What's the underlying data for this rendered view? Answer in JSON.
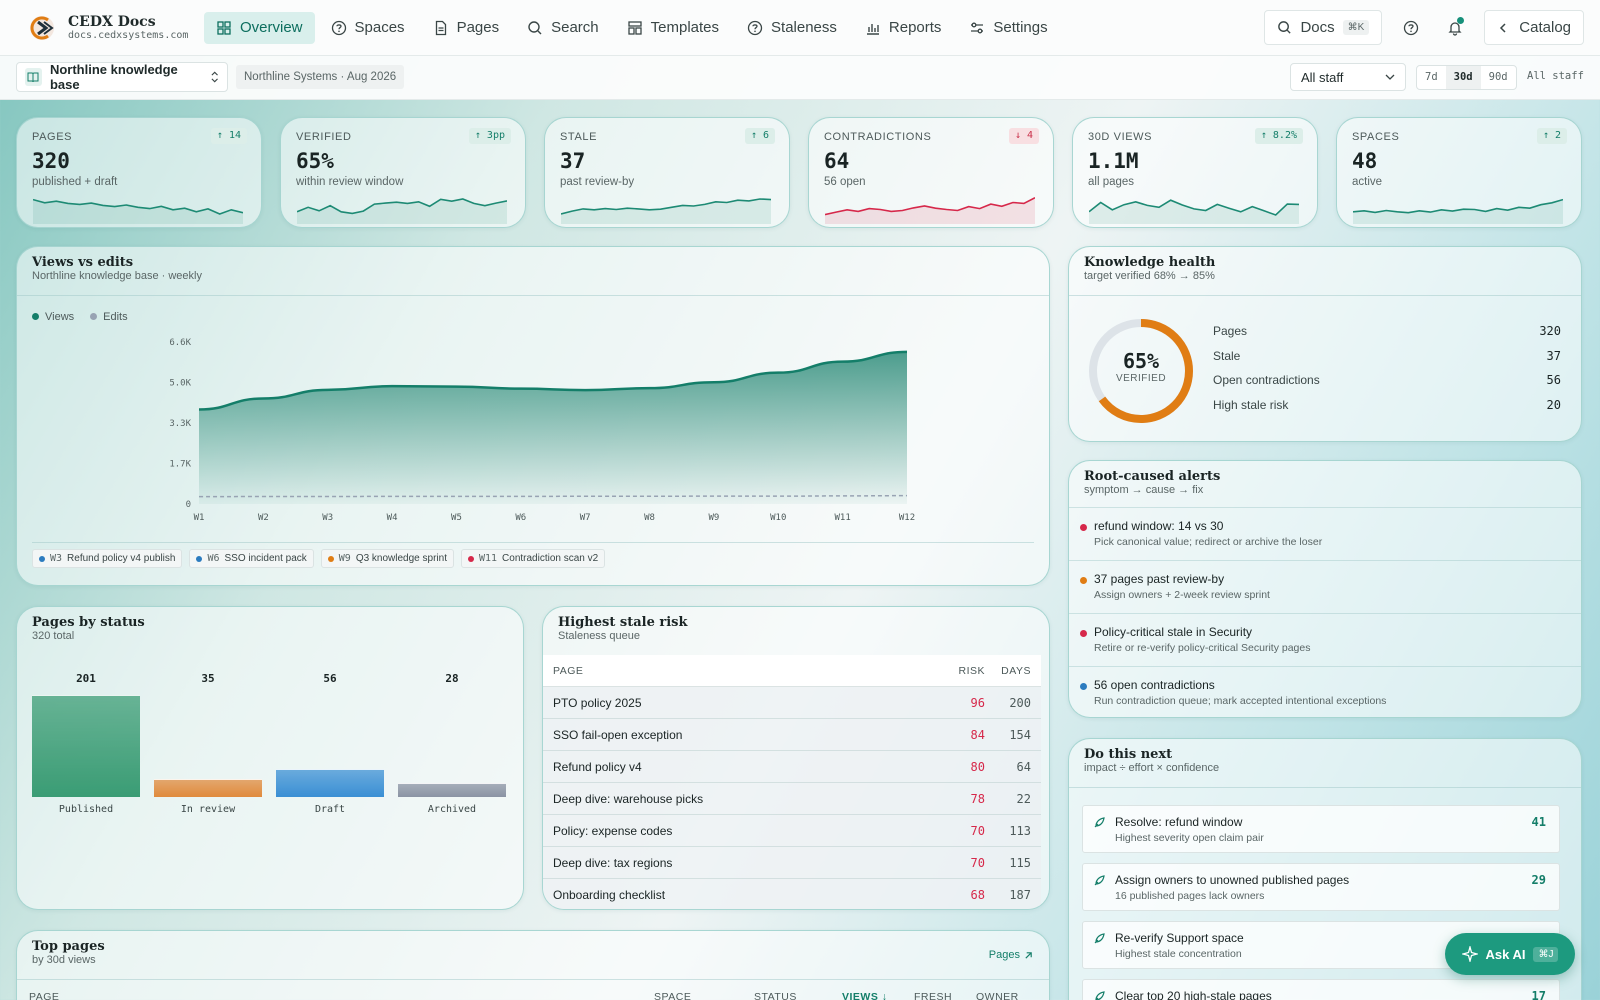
{
  "brand": {
    "title": "CEDX Docs",
    "domain": "docs.cedxsystems.com"
  },
  "nav": [
    {
      "label": "Overview",
      "icon": "grid-icon",
      "active": true
    },
    {
      "label": "Spaces",
      "icon": "help-circle-icon"
    },
    {
      "label": "Pages",
      "icon": "document-icon"
    },
    {
      "label": "Search",
      "icon": "search-icon"
    },
    {
      "label": "Templates",
      "icon": "template-icon"
    },
    {
      "label": "Staleness",
      "icon": "help-circle-icon"
    },
    {
      "label": "Reports",
      "icon": "bar-chart-icon"
    },
    {
      "label": "Settings",
      "icon": "sliders-icon"
    }
  ],
  "top_right": {
    "docs_label": "Docs",
    "docs_shortcut": "⌘K",
    "catalog_label": "Catalog"
  },
  "subbar": {
    "knowledge_base": "Northline knowledge base",
    "org": "Northline Systems · Aug 2026",
    "audience": "All staff",
    "ranges": [
      "7d",
      "30d",
      "90d"
    ],
    "active_range": "30d",
    "audience_tag": "All staff"
  },
  "kpis": [
    {
      "label": "PAGES",
      "value": "320",
      "sub": "published + draft",
      "delta": "↑ 14",
      "dir": "up",
      "spark": [
        7,
        6,
        6.5,
        5.8,
        5.5,
        5.9,
        5.2,
        4.8,
        5.3,
        4.6,
        4.2,
        4.9,
        3.8,
        4.3,
        3.2,
        4.1,
        2.5,
        3.8,
        2.9
      ],
      "color": "#1d8a74"
    },
    {
      "label": "VERIFIED",
      "value": "65%",
      "sub": "within review window",
      "delta": "↑ 3pp",
      "dir": "up",
      "spark": [
        3.2,
        4.6,
        3.5,
        5.1,
        3.2,
        2.7,
        3.4,
        5.6,
        5.9,
        6.2,
        5.8,
        6.3,
        4.9,
        7.1,
        6.5,
        7.2,
        5.8,
        5.1,
        5.9,
        6.6
      ],
      "color": "#1d8a74"
    },
    {
      "label": "STALE",
      "value": "37",
      "sub": "past review-by",
      "delta": "↑ 6",
      "dir": "up",
      "spark": [
        2.5,
        3.4,
        4.1,
        3.8,
        4.2,
        3.9,
        4.3,
        4.1,
        3.8,
        4.0,
        4.6,
        5.2,
        5.0,
        5.5,
        6.3,
        6.1,
        6.8,
        6.6,
        7.2,
        7.0
      ],
      "color": "#1d8a74"
    },
    {
      "label": "CONTRADICTIONS",
      "value": "64",
      "sub": "56 open",
      "delta": "↓ 4",
      "dir": "down",
      "spark": [
        2.3,
        3.1,
        3.8,
        3.3,
        4.2,
        3.9,
        3.3,
        3.6,
        4.4,
        5.0,
        4.3,
        3.9,
        3.6,
        4.8,
        4.2,
        5.6,
        4.9,
        6.1,
        5.8,
        7.6
      ],
      "color": "#d6284a"
    },
    {
      "label": "30D VIEWS",
      "value": "1.1M",
      "sub": "all pages",
      "delta": "↑ 8.2%",
      "dir": "up",
      "spark": [
        3.2,
        6.1,
        3.8,
        5.4,
        6.3,
        5.2,
        4.6,
        6.8,
        5.3,
        4.1,
        3.6,
        5.5,
        4.3,
        3.2,
        4.8,
        3.5,
        2.2,
        5.6,
        5.5
      ],
      "color": "#1d8a74"
    },
    {
      "label": "SPACES",
      "value": "48",
      "sub": "active",
      "delta": "↑ 2",
      "dir": "up",
      "spark": [
        3.2,
        3.5,
        3.0,
        3.6,
        3.2,
        2.9,
        3.5,
        3.1,
        3.8,
        3.4,
        4.0,
        3.9,
        3.3,
        4.2,
        3.7,
        4.6,
        4.3,
        5.4,
        6.0,
        7.0
      ],
      "color": "#1d8a74"
    }
  ],
  "views_edits": {
    "title": "Views vs edits",
    "subtitle": "Northline knowledge base · weekly",
    "legend": [
      {
        "name": "Views",
        "color": "#147e69"
      },
      {
        "name": "Edits",
        "color": "#98a3b3"
      }
    ],
    "events": [
      {
        "week": "W3",
        "label": "Refund policy v4 publish",
        "color": "#2b7bbf"
      },
      {
        "week": "W6",
        "label": "SSO incident pack",
        "color": "#2b7bbf"
      },
      {
        "week": "W9",
        "label": "Q3 knowledge sprint",
        "color": "#e07d14"
      },
      {
        "week": "W11",
        "label": "Contradiction scan v2",
        "color": "#d6284a"
      }
    ]
  },
  "chart_data": {
    "type": "area",
    "x": [
      "W1",
      "W2",
      "W3",
      "W4",
      "W5",
      "W6",
      "W7",
      "W8",
      "W9",
      "W10",
      "W11",
      "W12"
    ],
    "y_ticks": [
      "0",
      "1.7K",
      "3.3K",
      "5.0K",
      "6.6K"
    ],
    "ylim": [
      0,
      6600
    ],
    "series": [
      {
        "name": "Views",
        "values": [
          3850,
          4300,
          4650,
          4800,
          4780,
          4700,
          4640,
          4720,
          4960,
          5350,
          5800,
          6200
        ]
      },
      {
        "name": "Edits",
        "values": [
          300,
          305,
          305,
          310,
          310,
          310,
          315,
          315,
          320,
          320,
          330,
          340
        ]
      }
    ]
  },
  "health": {
    "title": "Knowledge health",
    "subtitle": "target verified 68% → 85%",
    "percent": "65%",
    "percent_label": "VERIFIED",
    "verified_fraction": 0.65,
    "rows": [
      {
        "label": "Pages",
        "value": "320"
      },
      {
        "label": "Stale",
        "value": "37"
      },
      {
        "label": "Open contradictions",
        "value": "56"
      },
      {
        "label": "High stale risk",
        "value": "20"
      }
    ]
  },
  "alerts": {
    "title": "Root-caused alerts",
    "subtitle": "symptom → cause → fix",
    "items": [
      {
        "title": "refund window: 14 vs 30",
        "fix": "Pick canonical value; redirect or archive the loser",
        "color": "#d6284a"
      },
      {
        "title": "37 pages past review-by",
        "fix": "Assign owners + 2-week review sprint",
        "color": "#e07d14"
      },
      {
        "title": "Policy-critical stale in Security",
        "fix": "Retire or re-verify policy-critical Security pages",
        "color": "#d6284a"
      },
      {
        "title": "56 open contradictions",
        "fix": "Run contradiction queue; mark accepted intentional exceptions",
        "color": "#2b7bbf"
      }
    ]
  },
  "next": {
    "title": "Do this next",
    "subtitle": "impact ÷ effort × confidence",
    "items": [
      {
        "title": "Resolve: refund window",
        "sub": "Highest severity open claim pair",
        "score": "41"
      },
      {
        "title": "Assign owners to unowned published pages",
        "sub": "16 published pages lack owners",
        "score": "29"
      },
      {
        "title": "Re-verify Support space",
        "sub": "Highest stale concentration",
        "score": ""
      },
      {
        "title": "Clear top 20 high-stale pages",
        "sub": "",
        "score": "17"
      }
    ]
  },
  "status": {
    "title": "Pages by status",
    "subtitle": "320 total",
    "bars": [
      {
        "label": "Published",
        "value": 201,
        "color": "#3a9c74"
      },
      {
        "label": "In review",
        "value": 35,
        "color": "#e08a3c"
      },
      {
        "label": "Draft",
        "value": 56,
        "color": "#3a8fd4"
      },
      {
        "label": "Archived",
        "value": 28,
        "color": "#8a93a3"
      }
    ]
  },
  "stale": {
    "title": "Highest stale risk",
    "subtitle": "Staleness queue",
    "headers": [
      "PAGE",
      "RISK",
      "DAYS"
    ],
    "rows": [
      {
        "page": "PTO policy 2025",
        "risk": "96",
        "days": "200"
      },
      {
        "page": "SSO fail-open exception",
        "risk": "84",
        "days": "154"
      },
      {
        "page": "Refund policy v4",
        "risk": "80",
        "days": "64"
      },
      {
        "page": "Deep dive: warehouse picks",
        "risk": "78",
        "days": "22"
      },
      {
        "page": "Policy: expense codes",
        "risk": "70",
        "days": "113"
      },
      {
        "page": "Deep dive: tax regions",
        "risk": "70",
        "days": "115"
      },
      {
        "page": "Onboarding checklist",
        "risk": "68",
        "days": "187"
      }
    ]
  },
  "top_pages": {
    "title": "Top pages",
    "subtitle": "by 30d views",
    "link": "Pages",
    "headers": [
      "PAGE",
      "SPACE",
      "STATUS",
      "VIEWS ↓",
      "FRESH",
      "OWNER"
    ]
  },
  "ask_ai": {
    "label": "Ask AI",
    "shortcut": "⌘J"
  }
}
